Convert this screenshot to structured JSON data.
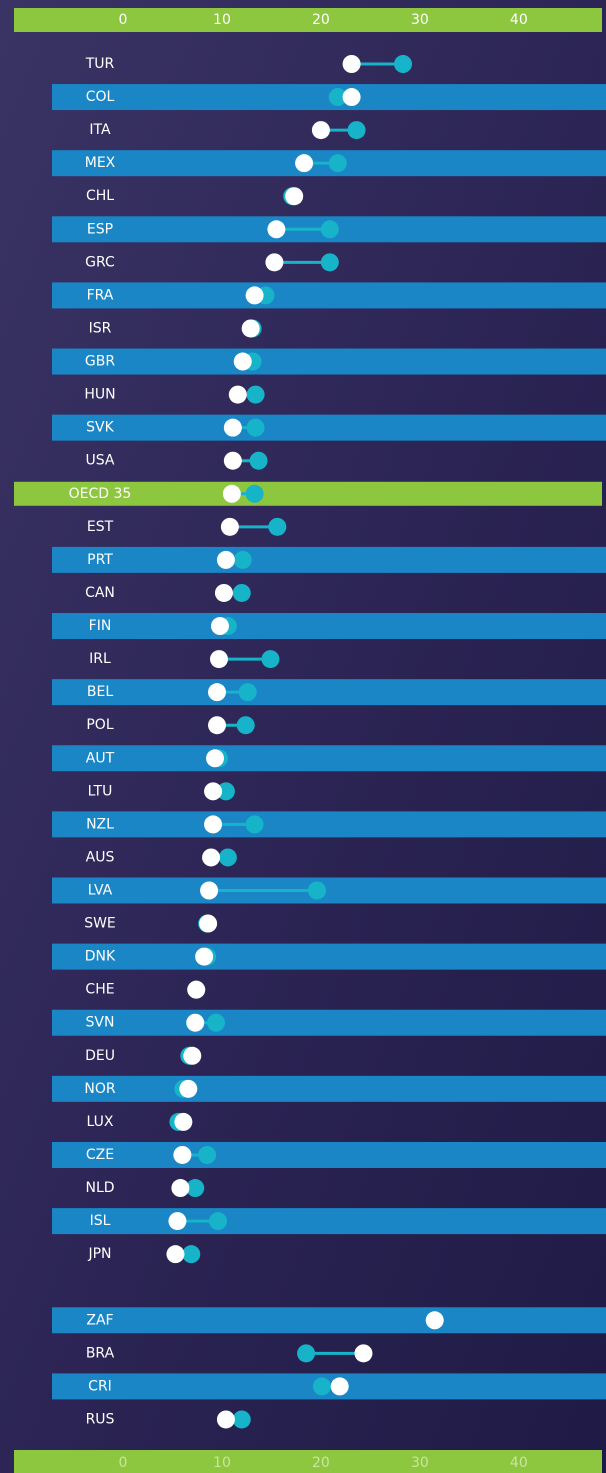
{
  "chart_data": {
    "type": "dumbbell",
    "categories": [
      "TUR",
      "COL",
      "ITA",
      "MEX",
      "CHL",
      "ESP",
      "GRC",
      "FRA",
      "ISR",
      "GBR",
      "HUN",
      "SVK",
      "USA",
      "OECD 35",
      "EST",
      "PRT",
      "CAN",
      "FIN",
      "IRL",
      "BEL",
      "POL",
      "AUT",
      "LTU",
      "NZL",
      "AUS",
      "LVA",
      "SWE",
      "DNK",
      "CHE",
      "SVN",
      "DEU",
      "NOR",
      "LUX",
      "CZE",
      "NLD",
      "ISL",
      "JPN",
      null,
      "ZAF",
      "BRA",
      "CRI",
      "RUS"
    ],
    "series": [
      {
        "color": "#17b3c9",
        "values": [
          28.3,
          21.7,
          23.6,
          21.7,
          17.1,
          20.9,
          20.9,
          14.4,
          13.1,
          13.1,
          13.4,
          13.4,
          13.7,
          13.3,
          15.6,
          12.1,
          12.0,
          10.6,
          14.9,
          12.6,
          12.4,
          9.7,
          10.4,
          13.3,
          10.6,
          19.6,
          8.5,
          8.5,
          7.4,
          9.4,
          6.7,
          6.1,
          5.6,
          8.5,
          7.3,
          9.6,
          6.9,
          null,
          31.5,
          18.5,
          20.1,
          12.0
        ]
      },
      {
        "color": "#ffffff",
        "values": [
          23.1,
          23.1,
          20.0,
          18.3,
          17.3,
          15.5,
          15.3,
          13.3,
          12.9,
          12.1,
          11.6,
          11.1,
          11.1,
          11.0,
          10.8,
          10.4,
          10.2,
          9.8,
          9.7,
          9.5,
          9.5,
          9.3,
          9.1,
          9.1,
          8.9,
          8.7,
          8.6,
          8.2,
          7.4,
          7.3,
          7.0,
          6.6,
          6.1,
          6.0,
          5.8,
          5.5,
          5.3,
          null,
          31.5,
          24.3,
          21.9,
          10.4
        ]
      }
    ],
    "xlim": [
      0,
      48
    ],
    "xticks": [
      0,
      10,
      20,
      30,
      40
    ]
  }
}
